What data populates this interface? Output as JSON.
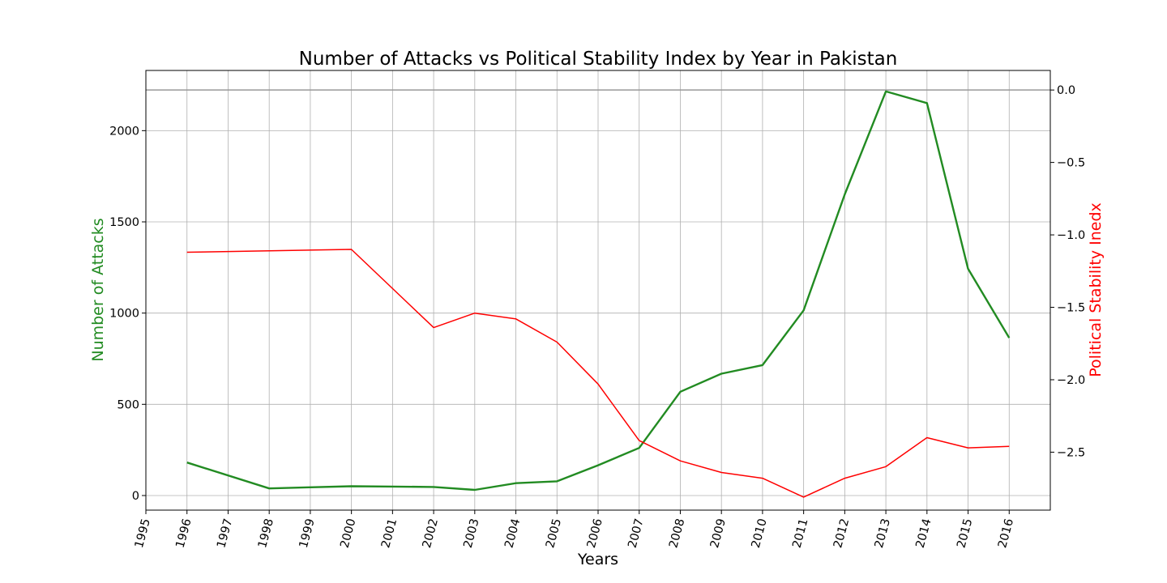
{
  "chart_data": {
    "type": "line",
    "title": "Number of Attacks vs Political Stability Index by Year in Pakistan",
    "xlabel": "Years",
    "ylabel_left": "Number of Attacks",
    "ylabel_right": "Political Stability Inedx",
    "x_ticks": [
      "1995",
      "1996",
      "1997",
      "1998",
      "1999",
      "2000",
      "2001",
      "2002",
      "2003",
      "2004",
      "2005",
      "2006",
      "2007",
      "2008",
      "2009",
      "2010",
      "2011",
      "2012",
      "2013",
      "2014",
      "2015",
      "2016"
    ],
    "xlim": [
      1995,
      2017
    ],
    "y_left_ticks": [
      "0",
      "500",
      "1000",
      "1500",
      "2000"
    ],
    "y_left_tick_values": [
      0,
      500,
      1000,
      1500,
      2000
    ],
    "ylim_left": [
      -80,
      2330
    ],
    "y_right_ticks": [
      "0.0",
      "−0.5",
      "−1.0",
      "−1.5",
      "−2.0",
      "−2.5"
    ],
    "y_right_tick_values": [
      0.0,
      -0.5,
      -1.0,
      -1.5,
      -2.0,
      -2.5
    ],
    "ylim_right": [
      -2.9,
      0.135
    ],
    "grid": true,
    "series": [
      {
        "axis": "left",
        "color": "#228b22",
        "x": [
          1996,
          1998,
          1999,
          2000,
          2001,
          2002,
          2003,
          2004,
          2005,
          2006,
          2007,
          2008,
          2009,
          2010,
          2011,
          2012,
          2013,
          2014,
          2015,
          2016
        ],
        "values": [
          181,
          39,
          45,
          51,
          49,
          47,
          31,
          68,
          78,
          166,
          261,
          569,
          668,
          715,
          1015,
          1651,
          2215,
          2151,
          1243,
          864
        ]
      },
      {
        "axis": "right",
        "color": "#ff0000",
        "x": [
          1996,
          1998,
          2000,
          2002,
          2003,
          2004,
          2005,
          2006,
          2007,
          2008,
          2009,
          2010,
          2011,
          2012,
          2013,
          2014,
          2015,
          2016
        ],
        "values": [
          -1.12,
          -1.11,
          -1.1,
          -1.64,
          -1.54,
          -1.58,
          -1.74,
          -2.03,
          -2.42,
          -2.56,
          -2.64,
          -2.68,
          -2.81,
          -2.68,
          -2.6,
          -2.4,
          -2.47,
          -2.46
        ]
      }
    ],
    "reference_line": {
      "axis": "right",
      "value": 0.0,
      "color": "#999999"
    }
  }
}
